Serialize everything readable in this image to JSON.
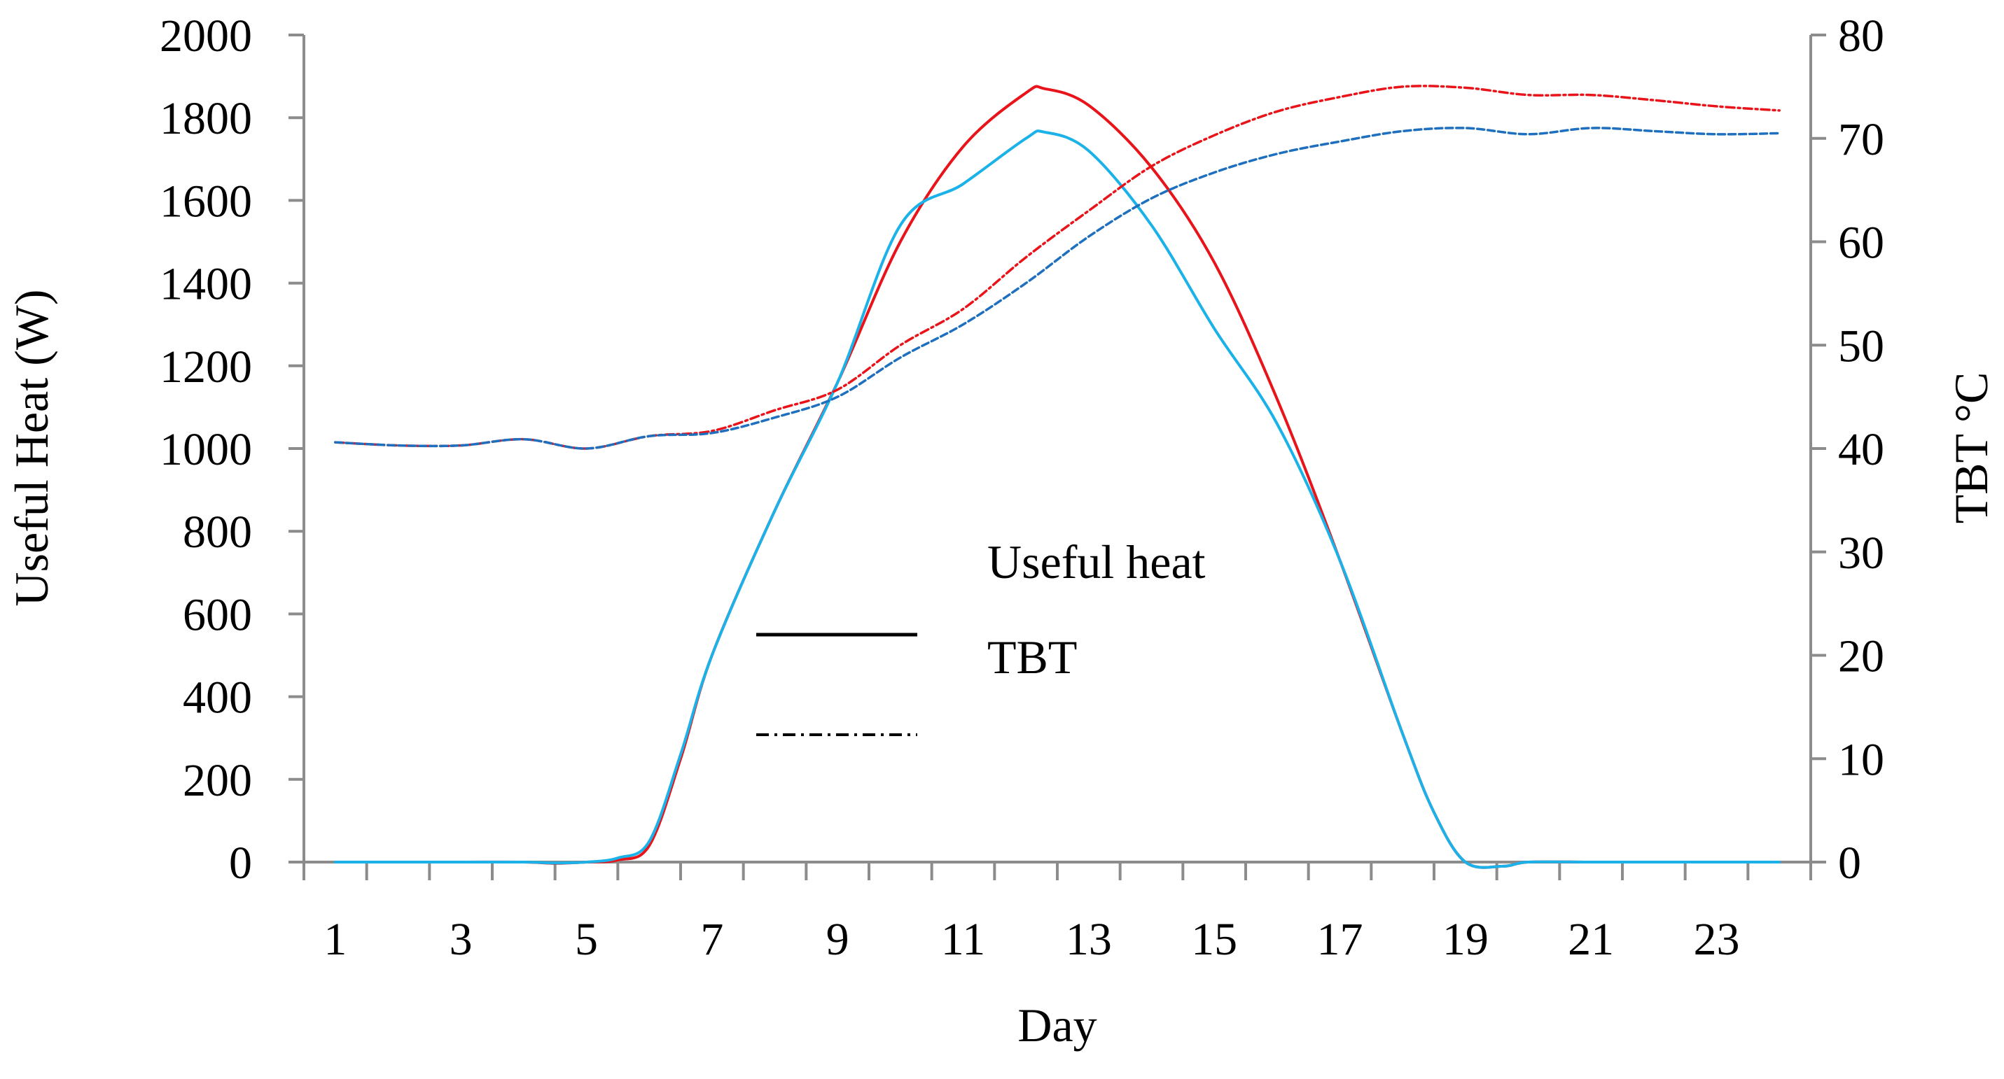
{
  "chart_data": {
    "type": "line",
    "title": "",
    "xlabel": "Day",
    "ylabel": "Useful Heat (W)",
    "y2label": "TBT °C",
    "xlim": [
      0.5,
      24.5
    ],
    "ylim": [
      0,
      2000
    ],
    "y2lim": [
      0,
      80
    ],
    "x_ticks": [
      "1",
      "3",
      "5",
      "7",
      "9",
      "11",
      "13",
      "15",
      "17",
      "19",
      "21",
      "23"
    ],
    "y_ticks": [
      "0",
      "200",
      "400",
      "600",
      "800",
      "1000",
      "1200",
      "1400",
      "1600",
      "1800",
      "2000"
    ],
    "y2_ticks": [
      "0",
      "10",
      "20",
      "30",
      "40",
      "50",
      "60",
      "70",
      "80"
    ],
    "legend": [
      {
        "label": "Useful heat",
        "style": "none"
      },
      {
        "label": "TBT",
        "style": "solid"
      },
      {
        "label": "",
        "style": "dashdot"
      }
    ],
    "series": [
      {
        "name": "Useful heat (red)",
        "axis": "left",
        "style": "solid",
        "color": "#e8141a",
        "x": [
          1,
          2,
          3,
          4,
          4.5,
          5,
          5.5,
          6,
          6.5,
          7,
          8,
          9,
          10,
          11,
          12,
          12.3,
          13,
          14,
          15,
          16,
          17,
          18,
          18.5,
          19,
          19.6,
          20,
          21,
          22,
          23,
          24
        ],
        "y": [
          0,
          0,
          0,
          0,
          -3,
          0,
          5,
          40,
          250,
          500,
          850,
          1160,
          1500,
          1730,
          1860,
          1870,
          1830,
          1680,
          1450,
          1120,
          730,
          310,
          120,
          0,
          -10,
          0,
          0,
          0,
          0,
          0
        ]
      },
      {
        "name": "Useful heat (blue)",
        "axis": "left",
        "style": "solid",
        "color": "#1ab2e8",
        "x": [
          1,
          2,
          3,
          4,
          4.5,
          5,
          5.5,
          6,
          6.5,
          7,
          8,
          9,
          10,
          11,
          12,
          12.3,
          13,
          14,
          15,
          16,
          17,
          18,
          18.5,
          19,
          19.6,
          20,
          21,
          22,
          23,
          24
        ],
        "y": [
          0,
          0,
          0,
          0,
          -2,
          0,
          10,
          50,
          260,
          500,
          850,
          1160,
          1540,
          1640,
          1750,
          1765,
          1720,
          1540,
          1290,
          1060,
          730,
          310,
          120,
          0,
          -10,
          0,
          0,
          0,
          0,
          0
        ]
      },
      {
        "name": "TBT (red)",
        "axis": "right",
        "style": "dashdot",
        "color": "#e8141a",
        "x": [
          1,
          2,
          3,
          4,
          5,
          6,
          7,
          8,
          9,
          10,
          11,
          12,
          13,
          14,
          15,
          16,
          17,
          18,
          19,
          20,
          21,
          22,
          23,
          24
        ],
        "y": [
          40.6,
          40.3,
          40.3,
          40.9,
          40.0,
          41.2,
          41.7,
          43.7,
          45.7,
          50.0,
          53.5,
          58.5,
          63.0,
          67.3,
          70.3,
          72.6,
          74.0,
          75.0,
          74.9,
          74.2,
          74.2,
          73.7,
          73.1,
          72.7
        ]
      },
      {
        "name": "TBT (blue)",
        "axis": "right",
        "style": "dashed",
        "color": "#1f6fbf",
        "x": [
          1,
          2,
          3,
          4,
          5,
          6,
          7,
          8,
          9,
          10,
          11,
          12,
          13,
          14,
          15,
          16,
          17,
          18,
          19,
          20,
          21,
          22,
          23,
          24
        ],
        "y": [
          40.6,
          40.3,
          40.3,
          40.9,
          40.0,
          41.2,
          41.5,
          43.0,
          45.0,
          48.8,
          52.0,
          56.0,
          60.5,
          64.2,
          66.7,
          68.5,
          69.7,
          70.7,
          71.0,
          70.4,
          71.0,
          70.7,
          70.4,
          70.5
        ]
      }
    ]
  }
}
